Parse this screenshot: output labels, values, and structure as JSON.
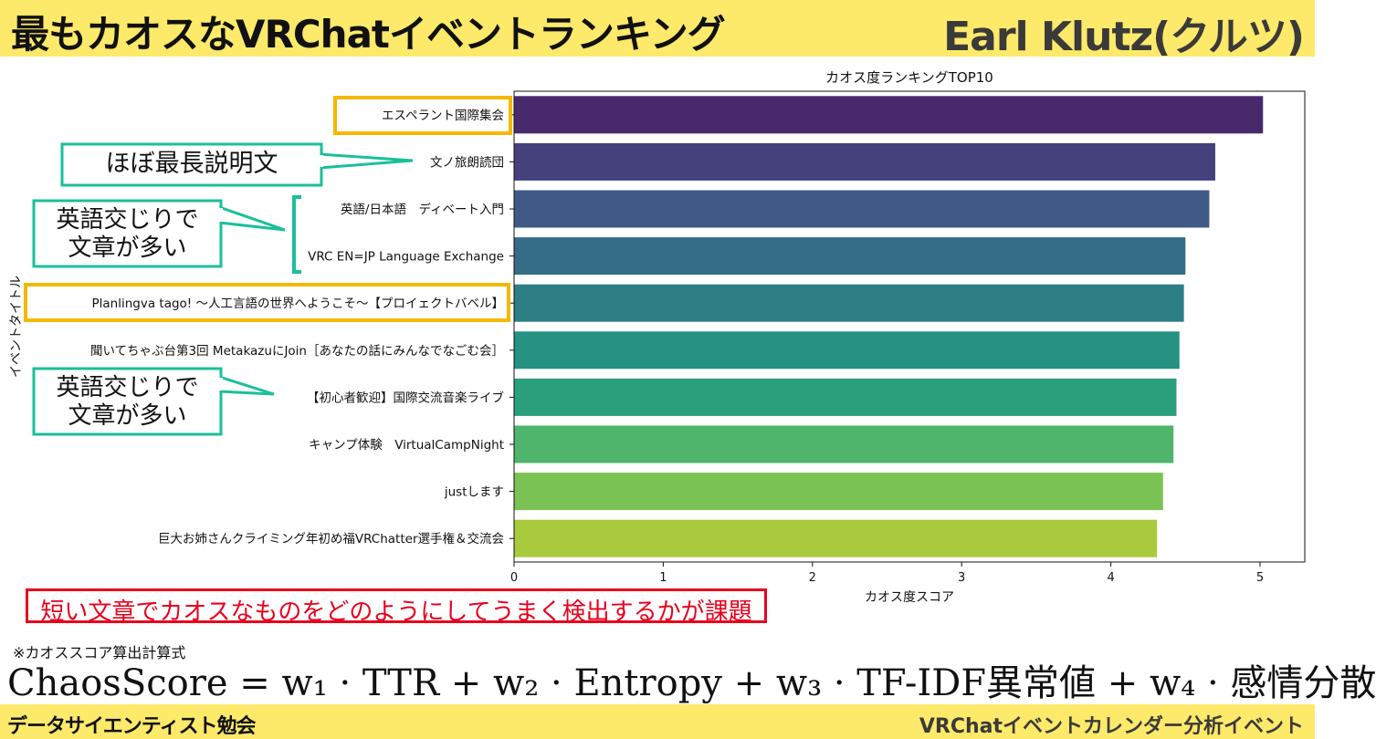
{
  "header": {
    "title": "最もカオスなVRChatイベントランキング",
    "author": "Earl Klutz(クルツ)"
  },
  "footer": {
    "left": "データサイエンティスト勉会",
    "right": "VRChatイベントカレンダー分析イベント"
  },
  "chart_data": {
    "type": "bar",
    "orientation": "horizontal",
    "title": "カオス度ランキングTOP10",
    "xlabel": "カオス度スコア",
    "ylabel": "イベントタイトル",
    "xlim": [
      0,
      5.3
    ],
    "xticks": [
      0,
      1,
      2,
      3,
      4,
      5
    ],
    "grid": false,
    "categories": [
      "エスペラント国際集会",
      "文ノ旅朗読団",
      "英語/日本語　ディベート入門",
      "VRC EN=JP Language Exchange",
      "Planlingva tago! ～人工言語の世界へようこそ～【プロイェクトバベル】",
      "聞いてちゃぶ台第3回 MetakazuにJoin［あなたの話にみんなでなごむ会］",
      "【初心者歓迎】国際交流音楽ライブ",
      "キャンプ体験　VirtualCampNight",
      "justします",
      "巨大お姉さんクライミング年初め福VRChatter選手権＆交流会"
    ],
    "values": [
      5.02,
      4.7,
      4.66,
      4.5,
      4.49,
      4.46,
      4.44,
      4.42,
      4.35,
      4.31
    ],
    "colors": [
      "#482a6c",
      "#45417d",
      "#3f5a86",
      "#356d86",
      "#2d7f85",
      "#259182",
      "#299f7a",
      "#4fb46c",
      "#7ac254",
      "#a9ca3d"
    ]
  },
  "annotations": {
    "callout1": "ほぼ最長説明文",
    "callout2_line1": "英語交じりで",
    "callout2_line2": "文章が多い",
    "callout3_line1": "英語交じりで",
    "callout3_line2": "文章が多い",
    "conclusion": "短い文章でカオスなものをどのようにしてうまく検出するかが課題",
    "formula_note": "※カオススコア算出計算式",
    "formula": "ChaosScore = w₁ · TTR + w₂ · Entropy + w₃ · TF-IDF異常値 + w₄ · 感情分散"
  },
  "colors": {
    "banner": "#fde96a",
    "highlight_orange": "#f5b800",
    "callout_teal": "#1bbf9a",
    "alert_red": "#e8001c"
  }
}
